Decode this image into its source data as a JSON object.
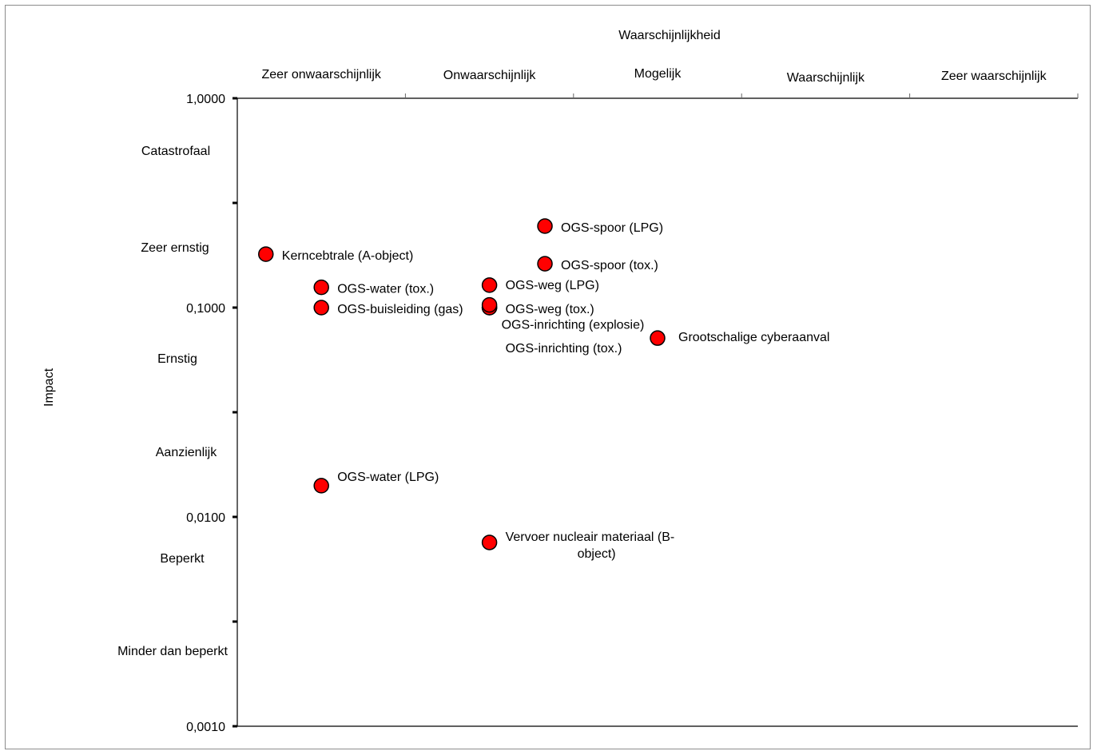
{
  "chart_data": {
    "type": "scatter",
    "xlabel": "Waarschijnlijkheid",
    "ylabel": "Impact",
    "x_categories": [
      "Zeer onwaarschijnlijk",
      "Onwaarschijnlijk",
      "Mogelijk",
      "Waarschijnlijk",
      "Zeer waarschijnlijk"
    ],
    "xlim": [
      0,
      5
    ],
    "yscale": "log",
    "ylim": [
      0.001,
      1
    ],
    "y_ticks": [
      "1,0000",
      "0,1000",
      "0,0100",
      "0,0010"
    ],
    "y_ticks_values": [
      1,
      0.1,
      0.01,
      0.001
    ],
    "y_categories": [
      "Catastrofaal",
      "Zeer ernstig",
      "Ernstig",
      "Aanzienlijk",
      "Beperkt",
      "Minder dan beperkt"
    ],
    "grid": false,
    "marker_color": "#ff0000",
    "points": [
      {
        "label": "Kerncebtrale (A-object)",
        "x": 0.17,
        "y": 0.18
      },
      {
        "label": "OGS-water (tox.)",
        "x": 0.5,
        "y": 0.125
      },
      {
        "label": "OGS-buisleiding (gas)",
        "x": 0.5,
        "y": 0.1
      },
      {
        "label": "OGS-water (LPG)",
        "x": 0.5,
        "y": 0.0141
      },
      {
        "label": "OGS-spoor (LPG)",
        "x": 1.83,
        "y": 0.245
      },
      {
        "label": "OGS-spoor (tox.)",
        "x": 1.83,
        "y": 0.162
      },
      {
        "label": "OGS-weg (LPG)",
        "x": 1.5,
        "y": 0.128
      },
      {
        "label": "OGS-weg (tox.)",
        "x": 1.5,
        "y": 0.1
      },
      {
        "label": "OGS-inrichting (explosie)",
        "x": 1.5,
        "y": 0.103
      },
      {
        "label": "OGS-inrichting (tox.)",
        "x": 1.5,
        "y": 0.1
      },
      {
        "label": "Grootschalige cyberaanval",
        "x": 2.5,
        "y": 0.0715
      },
      {
        "label": "Vervoer nucleair materiaal (B-object)",
        "x": 1.5,
        "y": 0.00755
      }
    ]
  }
}
